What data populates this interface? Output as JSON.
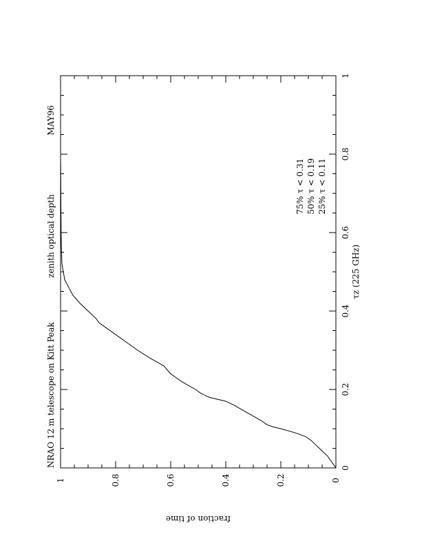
{
  "chart_data": {
    "type": "line",
    "orientation": "rotated-90",
    "title_left": "NRAO 12 m telescope on Kitt Peak",
    "title_center": "zenith optical depth",
    "title_right": "MAY96",
    "xlabel": "τz (225 GHz)",
    "ylabel": "fraction of time",
    "xlim": [
      0,
      1
    ],
    "ylim": [
      0,
      1
    ],
    "x_ticks": [
      "0",
      "0.2",
      "0.4",
      "0.6",
      "0.8",
      "1"
    ],
    "y_ticks": [
      "0",
      "0.2",
      "0.4",
      "0.6",
      "0.8",
      "1"
    ],
    "annotations": [
      "75%  τ < 0.31",
      "50%  τ < 0.19",
      "25%  τ < 0.11"
    ],
    "series": [
      {
        "x": [
          0,
          0.005,
          0.01,
          0.02,
          0.03,
          0.04,
          0.05,
          0.06,
          0.07,
          0.08,
          0.09,
          0.1,
          0.105,
          0.11,
          0.12,
          0.14,
          0.16,
          0.17,
          0.18,
          0.19,
          0.2,
          0.22,
          0.24,
          0.26,
          0.27,
          0.28,
          0.3,
          0.32,
          0.34,
          0.36,
          0.37,
          0.38,
          0.4,
          0.42,
          0.44,
          0.46,
          0.48,
          0.5,
          0.52,
          0.56,
          0.6,
          0.7,
          0.8,
          0.9,
          1.0
        ],
        "y": [
          0,
          0.005,
          0.01,
          0.02,
          0.03,
          0.045,
          0.06,
          0.075,
          0.09,
          0.11,
          0.15,
          0.2,
          0.23,
          0.25,
          0.27,
          0.32,
          0.37,
          0.4,
          0.46,
          0.49,
          0.51,
          0.56,
          0.6,
          0.625,
          0.65,
          0.675,
          0.72,
          0.76,
          0.8,
          0.84,
          0.86,
          0.87,
          0.9,
          0.93,
          0.955,
          0.97,
          0.985,
          0.99,
          0.995,
          0.997,
          0.998,
          0.999,
          1.0,
          1.0,
          1.0
        ]
      }
    ]
  }
}
